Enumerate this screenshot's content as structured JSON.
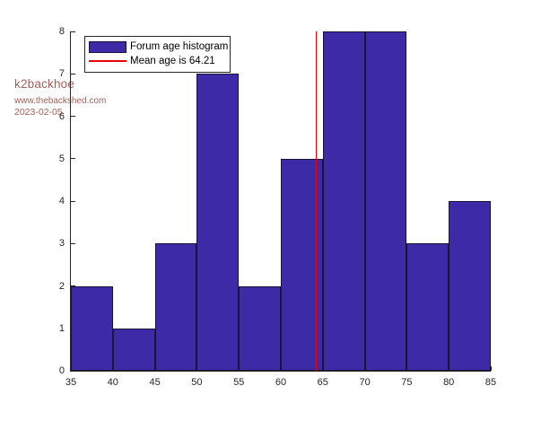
{
  "watermark": {
    "author": "k2backhoe",
    "site": "www.thebackshed.com",
    "date": "2023-02-05",
    "color": "#A0615B"
  },
  "chart_data": {
    "type": "bar",
    "title": "",
    "xlabel": "",
    "ylabel": "",
    "bin_edges": [
      35,
      40,
      45,
      50,
      55,
      60,
      65,
      70,
      75,
      80,
      85
    ],
    "categories": [
      "35-40",
      "40-45",
      "45-50",
      "50-55",
      "55-60",
      "60-65",
      "65-70",
      "70-75",
      "75-80",
      "80-85"
    ],
    "values": [
      2,
      1,
      3,
      7,
      2,
      5,
      8,
      8,
      3,
      4
    ],
    "xlim": [
      35,
      85
    ],
    "ylim": [
      0,
      8
    ],
    "x_ticks": [
      35,
      40,
      45,
      50,
      55,
      60,
      65,
      70,
      75,
      80,
      85
    ],
    "y_ticks": [
      0,
      1,
      2,
      3,
      4,
      5,
      6,
      7,
      8
    ],
    "grid": false,
    "legend": {
      "position": "top-left",
      "entries": [
        {
          "label": "Forum age histogram",
          "type": "bar"
        },
        {
          "label": "Mean age is 64.21",
          "type": "line"
        }
      ]
    },
    "mean_line": {
      "value": 64.21,
      "color": "#EE0000"
    },
    "colors": {
      "bar_fill": "#3C2AA6",
      "bar_edge": "#1A1536",
      "axis": "#262626",
      "tick_label": "#262626",
      "legend_border": "#262626",
      "legend_text": "#000000"
    }
  }
}
